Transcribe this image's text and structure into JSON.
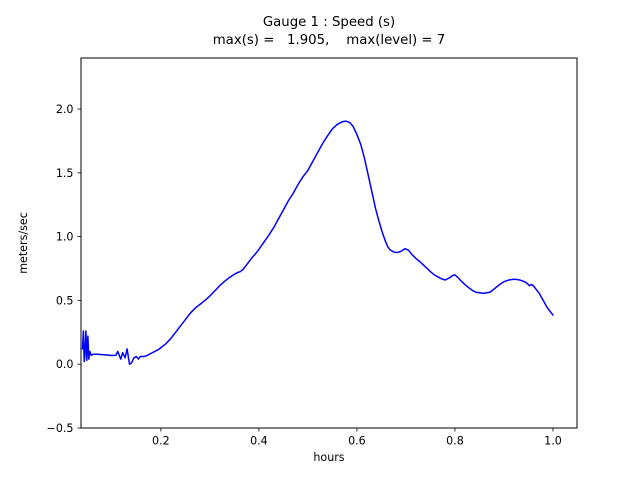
{
  "chart_data": {
    "type": "line",
    "title": "Gauge 1 : Speed (s)",
    "subtitle": "max(s) =   1.905,    max(level) = 7",
    "xlabel": "hours",
    "ylabel": "meters/sec",
    "xlim": [
      0.037,
      1.049
    ],
    "ylim": [
      -0.5,
      2.4
    ],
    "xticks": [
      0.2,
      0.4,
      0.6,
      0.8,
      1.0
    ],
    "xtick_labels": [
      "0.2",
      "0.4",
      "0.6",
      "0.8",
      "1.0"
    ],
    "yticks": [
      -0.5,
      0.0,
      0.5,
      1.0,
      1.5,
      2.0
    ],
    "ytick_labels": [
      "−0.5",
      "0.0",
      "0.5",
      "1.0",
      "1.5",
      "2.0"
    ],
    "grid": false,
    "legend_position": "none",
    "line_color": "#0000ff",
    "line_width": 1.5,
    "background_color": "#ffffff",
    "frame_color": "#000000",
    "max_s": "1.905",
    "max_level": "7",
    "series": [
      {
        "name": "Speed (s)",
        "points": [
          [
            0.04,
            0.12
          ],
          [
            0.042,
            0.26
          ],
          [
            0.0435,
            0.02
          ],
          [
            0.045,
            0.07
          ],
          [
            0.047,
            0.26
          ],
          [
            0.049,
            0.03
          ],
          [
            0.051,
            0.22
          ],
          [
            0.053,
            0.04
          ],
          [
            0.055,
            0.1
          ],
          [
            0.058,
            0.07
          ],
          [
            0.062,
            0.078
          ],
          [
            0.07,
            0.078
          ],
          [
            0.08,
            0.075
          ],
          [
            0.09,
            0.072
          ],
          [
            0.1,
            0.068
          ],
          [
            0.108,
            0.07
          ],
          [
            0.112,
            0.1
          ],
          [
            0.118,
            0.04
          ],
          [
            0.122,
            0.09
          ],
          [
            0.127,
            0.05
          ],
          [
            0.131,
            0.12
          ],
          [
            0.136,
            0.0
          ],
          [
            0.14,
            0.01
          ],
          [
            0.145,
            0.05
          ],
          [
            0.15,
            0.06
          ],
          [
            0.154,
            0.04
          ],
          [
            0.158,
            0.06
          ],
          [
            0.165,
            0.06
          ],
          [
            0.17,
            0.065
          ],
          [
            0.175,
            0.075
          ],
          [
            0.18,
            0.085
          ],
          [
            0.185,
            0.095
          ],
          [
            0.19,
            0.105
          ],
          [
            0.195,
            0.115
          ],
          [
            0.2,
            0.13
          ],
          [
            0.21,
            0.16
          ],
          [
            0.22,
            0.2
          ],
          [
            0.23,
            0.25
          ],
          [
            0.24,
            0.3
          ],
          [
            0.25,
            0.35
          ],
          [
            0.26,
            0.4
          ],
          [
            0.27,
            0.44
          ],
          [
            0.28,
            0.47
          ],
          [
            0.29,
            0.5
          ],
          [
            0.3,
            0.535
          ],
          [
            0.31,
            0.575
          ],
          [
            0.32,
            0.615
          ],
          [
            0.33,
            0.65
          ],
          [
            0.34,
            0.68
          ],
          [
            0.35,
            0.705
          ],
          [
            0.357,
            0.72
          ],
          [
            0.362,
            0.725
          ],
          [
            0.368,
            0.745
          ],
          [
            0.375,
            0.78
          ],
          [
            0.385,
            0.83
          ],
          [
            0.395,
            0.875
          ],
          [
            0.4,
            0.9
          ],
          [
            0.41,
            0.955
          ],
          [
            0.42,
            1.01
          ],
          [
            0.43,
            1.07
          ],
          [
            0.44,
            1.14
          ],
          [
            0.45,
            1.21
          ],
          [
            0.46,
            1.28
          ],
          [
            0.47,
            1.34
          ],
          [
            0.48,
            1.41
          ],
          [
            0.49,
            1.47
          ],
          [
            0.5,
            1.52
          ],
          [
            0.51,
            1.59
          ],
          [
            0.52,
            1.66
          ],
          [
            0.53,
            1.73
          ],
          [
            0.54,
            1.79
          ],
          [
            0.55,
            1.845
          ],
          [
            0.56,
            1.88
          ],
          [
            0.57,
            1.9
          ],
          [
            0.578,
            1.905
          ],
          [
            0.585,
            1.895
          ],
          [
            0.592,
            1.865
          ],
          [
            0.6,
            1.8
          ],
          [
            0.608,
            1.72
          ],
          [
            0.615,
            1.62
          ],
          [
            0.622,
            1.5
          ],
          [
            0.63,
            1.36
          ],
          [
            0.638,
            1.22
          ],
          [
            0.645,
            1.12
          ],
          [
            0.652,
            1.03
          ],
          [
            0.658,
            0.965
          ],
          [
            0.663,
            0.92
          ],
          [
            0.668,
            0.895
          ],
          [
            0.675,
            0.88
          ],
          [
            0.682,
            0.875
          ],
          [
            0.69,
            0.885
          ],
          [
            0.698,
            0.905
          ],
          [
            0.705,
            0.895
          ],
          [
            0.712,
            0.86
          ],
          [
            0.72,
            0.83
          ],
          [
            0.728,
            0.805
          ],
          [
            0.735,
            0.78
          ],
          [
            0.742,
            0.755
          ],
          [
            0.75,
            0.725
          ],
          [
            0.758,
            0.7
          ],
          [
            0.765,
            0.685
          ],
          [
            0.772,
            0.67
          ],
          [
            0.78,
            0.66
          ],
          [
            0.788,
            0.675
          ],
          [
            0.795,
            0.695
          ],
          [
            0.8,
            0.7
          ],
          [
            0.806,
            0.68
          ],
          [
            0.812,
            0.655
          ],
          [
            0.82,
            0.625
          ],
          [
            0.828,
            0.6
          ],
          [
            0.835,
            0.58
          ],
          [
            0.842,
            0.565
          ],
          [
            0.85,
            0.56
          ],
          [
            0.858,
            0.555
          ],
          [
            0.865,
            0.56
          ],
          [
            0.872,
            0.565
          ],
          [
            0.88,
            0.59
          ],
          [
            0.888,
            0.615
          ],
          [
            0.895,
            0.635
          ],
          [
            0.902,
            0.65
          ],
          [
            0.91,
            0.66
          ],
          [
            0.918,
            0.665
          ],
          [
            0.925,
            0.665
          ],
          [
            0.932,
            0.66
          ],
          [
            0.94,
            0.65
          ],
          [
            0.947,
            0.635
          ],
          [
            0.952,
            0.615
          ],
          [
            0.956,
            0.625
          ],
          [
            0.96,
            0.615
          ],
          [
            0.965,
            0.59
          ],
          [
            0.972,
            0.555
          ],
          [
            0.98,
            0.5
          ],
          [
            0.988,
            0.445
          ],
          [
            0.995,
            0.41
          ],
          [
            1.0,
            0.385
          ]
        ]
      }
    ]
  }
}
